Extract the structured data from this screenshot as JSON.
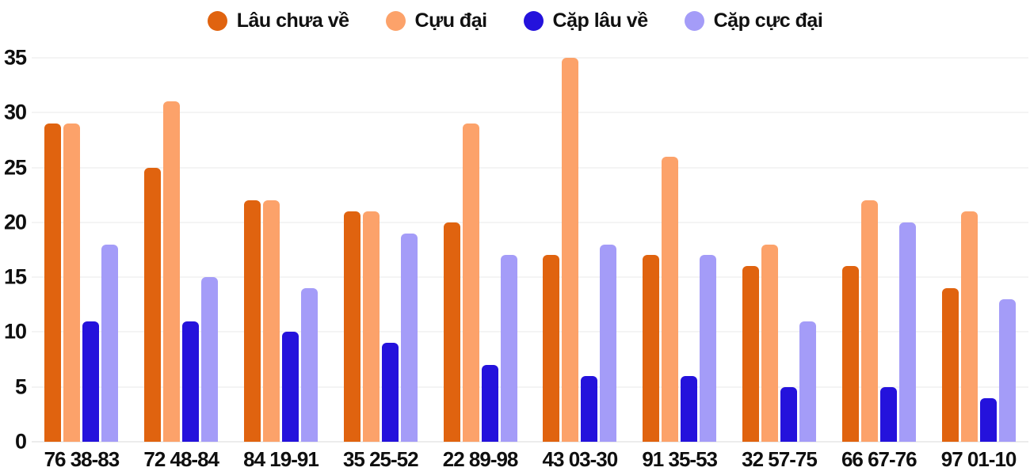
{
  "chart_data": {
    "type": "bar",
    "title": "",
    "xlabel": "",
    "ylabel": "",
    "categories": [
      "76 38-83",
      "72 48-84",
      "84 19-91",
      "35 25-52",
      "22 89-98",
      "43 03-30",
      "91 35-53",
      "32 57-75",
      "66 67-76",
      "97 01-10"
    ],
    "series": [
      {
        "name": "Lâu chưa về",
        "color": "#E0630F",
        "values": [
          29,
          25,
          22,
          21,
          20,
          17,
          17,
          16,
          16,
          14
        ]
      },
      {
        "name": "Cựu đại",
        "color": "#FCA26A",
        "values": [
          29,
          31,
          22,
          21,
          29,
          35,
          26,
          18,
          22,
          21
        ]
      },
      {
        "name": "Cặp lâu về",
        "color": "#2412DC",
        "values": [
          11,
          11,
          10,
          9,
          7,
          6,
          6,
          5,
          5,
          4
        ]
      },
      {
        "name": "Cặp cực đại",
        "color": "#A49CF8",
        "values": [
          18,
          15,
          14,
          19,
          17,
          18,
          17,
          11,
          20,
          13
        ]
      }
    ],
    "ylim": [
      0,
      35
    ],
    "yticks": [
      0,
      5,
      10,
      15,
      20,
      25,
      30,
      35
    ],
    "grid": "horizontal",
    "legend_position": "top"
  },
  "styles": {
    "background": "#ffffff",
    "grid_color": "#e9e9e9",
    "axis_line_color": "#d9d9d9",
    "text_color": "#0f0f0f"
  }
}
